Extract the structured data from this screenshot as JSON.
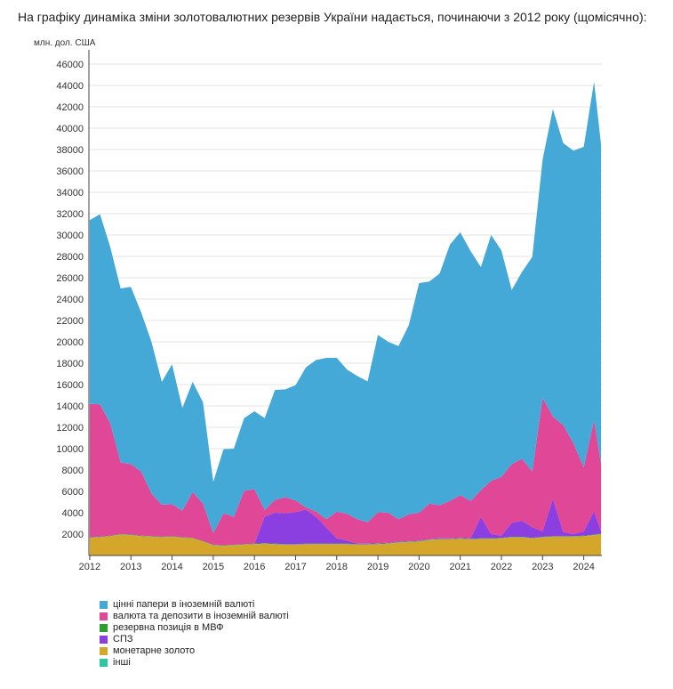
{
  "title": "На графіку динаміка зміни золотовалютних резервів України надається, починаючи з 2012 року (щомісячно):",
  "chart_data": {
    "type": "area",
    "stacked": true,
    "title": "На графіку динаміка зміни золотовалютних резервів України надається, починаючи з 2012 року (щомісячно):",
    "ylabel": "млн. дол. США",
    "xlabel": "",
    "ylim": [
      0,
      47000
    ],
    "xlim": [
      2011.98,
      2024.44
    ],
    "grid": true,
    "legend_position": "bottom-left",
    "yticks": [
      2000,
      4000,
      6000,
      8000,
      10000,
      12000,
      14000,
      16000,
      18000,
      20000,
      22000,
      24000,
      26000,
      28000,
      30000,
      32000,
      34000,
      36000,
      38000,
      40000,
      42000,
      44000,
      46000
    ],
    "ytick_labels": [
      "2000",
      "4000",
      "6000",
      "8000",
      "10000",
      "12000",
      "14000",
      "16000",
      "18000",
      "20000",
      "22000",
      "24000",
      "26000",
      "28000",
      "30000",
      "32000",
      "34000",
      "36000",
      "38000",
      "40000",
      "42000",
      "44000",
      "46000"
    ],
    "xticks": [
      2012,
      2013,
      2014,
      2015,
      2016,
      2017,
      2018,
      2019,
      2020,
      2021,
      2022,
      2023,
      2024
    ],
    "xtick_labels": [
      "2012",
      "2013",
      "2014",
      "2015",
      "2016",
      "2017",
      "2018",
      "2019",
      "2020",
      "2021",
      "2022",
      "2023",
      "2024"
    ],
    "x": [
      2012.0,
      2012.25,
      2012.5,
      2012.75,
      2013.0,
      2013.25,
      2013.5,
      2013.75,
      2014.0,
      2014.25,
      2014.5,
      2014.75,
      2015.0,
      2015.25,
      2015.5,
      2015.75,
      2016.0,
      2016.25,
      2016.5,
      2016.75,
      2017.0,
      2017.25,
      2017.5,
      2017.75,
      2018.0,
      2018.25,
      2018.5,
      2018.75,
      2019.0,
      2019.25,
      2019.5,
      2019.75,
      2020.0,
      2020.25,
      2020.5,
      2020.75,
      2021.0,
      2021.25,
      2021.5,
      2021.75,
      2022.0,
      2022.25,
      2022.5,
      2022.75,
      2023.0,
      2023.25,
      2023.5,
      2023.75,
      2024.0,
      2024.25,
      2024.42
    ],
    "series": [
      {
        "name": "монетарне золото",
        "color": "#d4a62a",
        "values": [
          1650,
          1700,
          1800,
          1950,
          1900,
          1800,
          1750,
          1700,
          1750,
          1650,
          1600,
          1300,
          950,
          900,
          950,
          1000,
          1050,
          1100,
          1050,
          1000,
          1000,
          1050,
          1050,
          1050,
          1050,
          1050,
          1000,
          1000,
          1050,
          1100,
          1200,
          1250,
          1300,
          1450,
          1500,
          1500,
          1550,
          1500,
          1550,
          1550,
          1600,
          1700,
          1700,
          1600,
          1700,
          1750,
          1750,
          1750,
          1800,
          1900,
          2000
        ]
      },
      {
        "name": "інші",
        "color": "#2ec5a1",
        "values": [
          20,
          20,
          20,
          20,
          20,
          20,
          20,
          20,
          20,
          20,
          20,
          20,
          20,
          20,
          20,
          20,
          20,
          20,
          20,
          20,
          20,
          20,
          20,
          20,
          20,
          20,
          20,
          20,
          20,
          20,
          20,
          20,
          20,
          20,
          20,
          20,
          20,
          20,
          20,
          20,
          20,
          20,
          20,
          20,
          20,
          20,
          20,
          20,
          20,
          20,
          20
        ]
      },
      {
        "name": "резервна позиція в МВФ",
        "color": "#2ca02c",
        "values": [
          30,
          30,
          30,
          30,
          30,
          30,
          30,
          30,
          30,
          30,
          30,
          30,
          30,
          30,
          30,
          30,
          30,
          30,
          30,
          30,
          30,
          30,
          30,
          30,
          30,
          30,
          30,
          30,
          30,
          30,
          30,
          30,
          30,
          30,
          30,
          30,
          30,
          30,
          30,
          30,
          30,
          30,
          30,
          30,
          30,
          30,
          30,
          30,
          30,
          30,
          30
        ]
      },
      {
        "name": "СПЗ",
        "color": "#8b3fe0",
        "values": [
          0,
          0,
          0,
          0,
          0,
          0,
          0,
          0,
          0,
          0,
          0,
          0,
          0,
          0,
          0,
          0,
          0,
          2500,
          2900,
          2900,
          3000,
          3200,
          2500,
          1500,
          500,
          300,
          50,
          50,
          50,
          50,
          50,
          50,
          50,
          50,
          50,
          50,
          50,
          50,
          2000,
          400,
          200,
          1300,
          1500,
          1000,
          500,
          3500,
          400,
          200,
          400,
          2200,
          200
        ]
      },
      {
        "name": "валюта та депозити в іноземній валюті",
        "color": "#e04796",
        "values": [
          12500,
          12400,
          10500,
          6700,
          6600,
          6000,
          4000,
          3000,
          3000,
          2500,
          4300,
          3500,
          1100,
          3000,
          2600,
          5000,
          5100,
          600,
          1200,
          1500,
          1100,
          200,
          500,
          800,
          2500,
          2500,
          2300,
          2000,
          2900,
          2800,
          2100,
          2500,
          2600,
          3300,
          3100,
          3500,
          4000,
          3500,
          2500,
          5000,
          5500,
          5500,
          5800,
          5200,
          12500,
          7700,
          10000,
          8500,
          6000,
          8500,
          6300
        ]
      },
      {
        "name": "цінні папери в іноземній валюті",
        "color": "#45a9d8",
        "values": [
          17200,
          17800,
          16500,
          16300,
          16600,
          14900,
          14200,
          11500,
          13100,
          9600,
          10300,
          9500,
          4800,
          6000,
          6400,
          6800,
          7300,
          8600,
          10300,
          10100,
          10800,
          13100,
          14200,
          15100,
          14400,
          13500,
          13400,
          13200,
          16600,
          16000,
          16200,
          17700,
          21500,
          20800,
          21700,
          24000,
          24600,
          23400,
          20900,
          23000,
          21200,
          16300,
          17500,
          20100,
          22300,
          28800,
          26400,
          27400,
          30000,
          31700,
          29900
        ]
      }
    ]
  }
}
